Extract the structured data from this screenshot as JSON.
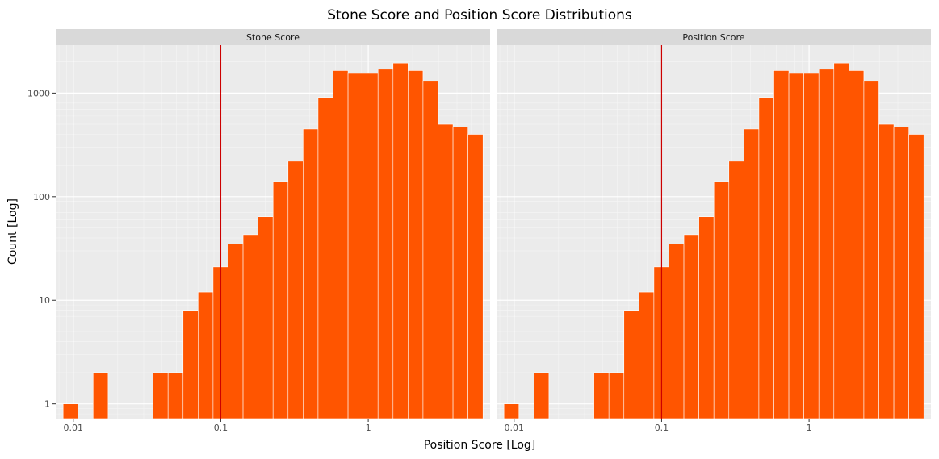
{
  "chart_data": {
    "type": "bar",
    "title": "Stone Score and Position Score Distributions",
    "xlabel": "Position Score [Log]",
    "ylabel": "Count [Log]",
    "x_scale": "log",
    "y_scale": "log",
    "xlim": [
      0.0076,
      6.7
    ],
    "ylim": [
      0.72,
      2900
    ],
    "x_ticks": [
      {
        "value": 0.01,
        "label": "0.01"
      },
      {
        "value": 0.1,
        "label": "0.1"
      },
      {
        "value": 1,
        "label": "1"
      }
    ],
    "y_ticks": [
      {
        "value": 1,
        "label": "1"
      },
      {
        "value": 10,
        "label": "10"
      },
      {
        "value": 100,
        "label": "100"
      },
      {
        "value": 1000,
        "label": "1000"
      }
    ],
    "vline": {
      "x": 0.1,
      "color": "#cc0000"
    },
    "bar_color": "#ff5500",
    "bar_edge_color": "#ffffff",
    "panel_bg": "#ebebeb",
    "strip_bg": "#d9d9d9",
    "grid": true,
    "bin_edges": [
      0.00853,
      0.01078,
      0.01362,
      0.01722,
      0.02176,
      0.0275,
      0.03476,
      0.04393,
      0.05552,
      0.07016,
      0.08867,
      0.11206,
      0.14163,
      0.17899,
      0.2262,
      0.28588,
      0.3613,
      0.45662,
      0.57708,
      0.72931,
      0.92171,
      1.16486,
      1.47216,
      1.86052,
      2.35134,
      2.9716,
      3.75551,
      4.7462,
      5.99825
    ],
    "panels": [
      {
        "label": "Stone Score",
        "counts": [
          1,
          0,
          2,
          0,
          0,
          0,
          2,
          2,
          8,
          12,
          21,
          35,
          43,
          64,
          140,
          220,
          450,
          910,
          1650,
          1550,
          1550,
          1700,
          1950,
          1650,
          1300,
          500,
          470,
          400
        ]
      },
      {
        "label": "Position Score",
        "counts": [
          1,
          0,
          2,
          0,
          0,
          0,
          2,
          2,
          8,
          12,
          21,
          35,
          43,
          64,
          140,
          220,
          450,
          910,
          1650,
          1550,
          1550,
          1700,
          1950,
          1650,
          1300,
          500,
          470,
          400
        ]
      }
    ]
  }
}
